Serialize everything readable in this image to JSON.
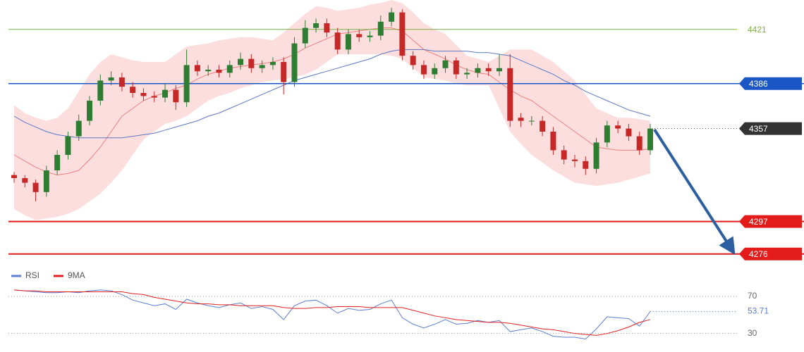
{
  "chart_data": [
    {
      "type": "candlestick",
      "up_color": "#2e7d32",
      "down_color": "#c62828",
      "ylim": [
        4270,
        4440
      ],
      "open": [
        4327,
        4325,
        4322,
        4316,
        4330,
        4340,
        4352,
        4362,
        4375,
        4388,
        4390,
        4384,
        4380,
        4378,
        4377,
        4382,
        4374,
        4398,
        4394,
        4395,
        4393,
        4398,
        4402,
        4396,
        4398,
        4400,
        4387,
        4412,
        4422,
        4425,
        4419,
        4408,
        4418,
        4416,
        4417,
        4426,
        4432,
        4404,
        4398,
        4392,
        4396,
        4401,
        4392,
        4393,
        4396,
        4394,
        4396,
        4364,
        4362,
        4362,
        4355,
        4343,
        4337,
        4336,
        4331,
        4348,
        4359,
        4357,
        4352,
        4343
      ],
      "high": [
        4329,
        4327,
        4324,
        4333,
        4343,
        4355,
        4366,
        4378,
        4392,
        4394,
        4393,
        4387,
        4383,
        4381,
        4386,
        4385,
        4408,
        4401,
        4398,
        4398,
        4401,
        4406,
        4405,
        4401,
        4403,
        4403,
        4416,
        4427,
        4428,
        4428,
        4422,
        4421,
        4421,
        4420,
        4430,
        4435,
        4434,
        4407,
        4401,
        4399,
        4404,
        4403,
        4396,
        4399,
        4399,
        4405,
        4405,
        4367,
        4365,
        4365,
        4358,
        4346,
        4340,
        4339,
        4351,
        4362,
        4362,
        4360,
        4355,
        4360
      ],
      "low": [
        4322,
        4319,
        4310,
        4313,
        4327,
        4337,
        4349,
        4359,
        4372,
        4385,
        4381,
        4377,
        4375,
        4374,
        4374,
        4369,
        4371,
        4391,
        4391,
        4390,
        4390,
        4395,
        4393,
        4393,
        4395,
        4379,
        4384,
        4409,
        4419,
        4416,
        4405,
        4405,
        4413,
        4413,
        4414,
        4423,
        4401,
        4395,
        4389,
        4389,
        4393,
        4389,
        4389,
        4390,
        4391,
        4391,
        4358,
        4358,
        4359,
        4352,
        4340,
        4334,
        4332,
        4327,
        4328,
        4345,
        4354,
        4349,
        4340,
        4340
      ],
      "close": [
        4325,
        4322,
        4316,
        4330,
        4340,
        4352,
        4362,
        4375,
        4388,
        4390,
        4384,
        4380,
        4378,
        4377,
        4382,
        4374,
        4398,
        4394,
        4395,
        4393,
        4398,
        4402,
        4396,
        4398,
        4400,
        4387,
        4412,
        4422,
        4425,
        4419,
        4408,
        4418,
        4416,
        4417,
        4426,
        4432,
        4404,
        4398,
        4392,
        4396,
        4401,
        4392,
        4393,
        4396,
        4394,
        4396,
        4362,
        4362,
        4362,
        4355,
        4343,
        4337,
        4336,
        4331,
        4348,
        4359,
        4357,
        4352,
        4343,
        4357
      ],
      "bands": {
        "color": "#fbd3d3",
        "upper": [
          4372,
          4367,
          4364,
          4362,
          4364,
          4370,
          4381,
          4392,
          4400,
          4405,
          4403,
          4401,
          4400,
          4400,
          4400,
          4405,
          4410,
          4411,
          4412,
          4414,
          4415,
          4416,
          4416,
          4415,
          4414,
          4419,
          4425,
          4431,
          4436,
          4435,
          4433,
          4434,
          4435,
          4437,
          4438,
          4440,
          4438,
          4432,
          4425,
          4421,
          4418,
          4411,
          4404,
          4402,
          4400,
          4404,
          4408,
          4408,
          4408,
          4404,
          4400,
          4394,
          4388,
          4379,
          4370,
          4367,
          4364,
          4364,
          4363,
          4362
        ],
        "lower": [
          4305,
          4301,
          4298,
          4299,
          4300,
          4302,
          4305,
          4310,
          4315,
          4322,
          4330,
          4340,
          4350,
          4355,
          4360,
          4362,
          4365,
          4370,
          4375,
          4378,
          4380,
          4383,
          4385,
          4387,
          4388,
          4389,
          4390,
          4392,
          4395,
          4400,
          4405,
          4405,
          4405,
          4405,
          4405,
          4404,
          4402,
          4396,
          4390,
          4389,
          4388,
          4386,
          4385,
          4385,
          4385,
          4370,
          4355,
          4347,
          4340,
          4335,
          4330,
          4326,
          4322,
          4321,
          4320,
          4321,
          4322,
          4324,
          4326,
          4328
        ]
      },
      "lines": [
        {
          "color": "#ee8080",
          "values": [
            4340,
            4336,
            4332,
            4329,
            4327,
            4328,
            4330,
            4337,
            4345,
            4355,
            4365,
            4370,
            4375,
            4378,
            4380,
            4383,
            4385,
            4389,
            4392,
            4394,
            4396,
            4397,
            4398,
            4399,
            4400,
            4402,
            4405,
            4409,
            4412,
            4415,
            4418,
            4419,
            4420,
            4421,
            4422,
            4422,
            4420,
            4414,
            4408,
            4405,
            4402,
            4398,
            4395,
            4393,
            4392,
            4387,
            4382,
            4378,
            4375,
            4370,
            4365,
            4360,
            4355,
            4350,
            4345,
            4344,
            4343,
            4343,
            4343,
            4344
          ]
        },
        {
          "color": "#5a78c0",
          "values": [
            4365,
            4361,
            4358,
            4355,
            4353,
            4352,
            4351,
            4351,
            4351,
            4351,
            4351,
            4352,
            4353,
            4354,
            4356,
            4358,
            4360,
            4362,
            4365,
            4367,
            4370,
            4373,
            4376,
            4379,
            4382,
            4385,
            4388,
            4390,
            4392,
            4394,
            4396,
            4398,
            4400,
            4402,
            4405,
            4407,
            4408,
            4408,
            4408,
            4407,
            4407,
            4407,
            4407,
            4406,
            4406,
            4405,
            4404,
            4401,
            4398,
            4395,
            4392,
            4388,
            4385,
            4381,
            4378,
            4375,
            4372,
            4369,
            4367,
            4365
          ]
        }
      ],
      "levels": [
        {
          "value": 4421,
          "color": "#7cb342",
          "width": 1,
          "tag": false
        },
        {
          "value": 4386,
          "color": "#1a56c4",
          "width": 1.5,
          "tag": true
        },
        {
          "value": 4297,
          "color": "#e31b1b",
          "width": 2,
          "tag": true
        },
        {
          "value": 4276,
          "color": "#e31b1b",
          "width": 2,
          "tag": true
        }
      ],
      "last_color": "#333333"
    },
    {
      "type": "line",
      "ylim": [
        10,
        86
      ],
      "yticks": [
        30,
        70
      ],
      "grid": true,
      "series": [
        {
          "name": "RSI",
          "color": "#5b7fd0",
          "values": [
            77,
            76,
            75,
            74,
            74,
            75,
            74,
            76,
            77,
            76,
            72,
            66,
            63,
            60,
            62,
            56,
            67,
            63,
            60,
            58,
            61,
            63,
            57,
            59,
            56,
            45,
            60,
            65,
            66,
            60,
            52,
            57,
            55,
            56,
            62,
            66,
            47,
            40,
            36,
            40,
            45,
            40,
            41,
            44,
            42,
            44,
            32,
            34,
            36,
            32,
            27,
            26,
            26,
            24,
            35,
            48,
            47,
            46,
            38,
            53.71
          ]
        },
        {
          "name": "9MA",
          "color": "#e02020",
          "values": [
            77,
            76,
            76,
            75,
            75,
            75,
            75,
            75,
            75,
            75,
            75,
            73,
            72,
            69,
            67,
            65,
            63,
            62,
            62,
            61,
            61,
            60,
            60,
            60,
            60,
            58,
            57,
            57,
            58,
            58,
            59,
            59,
            59,
            58,
            58,
            58,
            58,
            55,
            52,
            49,
            47,
            45,
            44,
            43,
            42,
            42,
            41,
            39,
            37,
            35,
            34,
            32,
            30,
            29,
            28,
            30,
            33,
            37,
            42,
            45
          ]
        }
      ]
    }
  ]
}
